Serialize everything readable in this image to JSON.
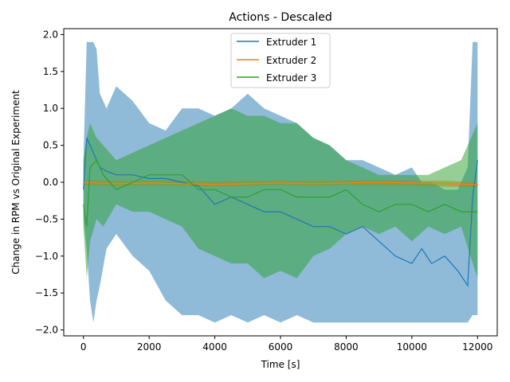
{
  "chart_data": {
    "type": "line",
    "title": "Actions - Descaled",
    "xlabel": "Time [s]",
    "ylabel": "Change in RPM vs Original Experiment",
    "xlim": [
      -600,
      12600
    ],
    "ylim": [
      -2.08,
      2.08
    ],
    "xticks": [
      0,
      2000,
      4000,
      6000,
      8000,
      10000,
      12000
    ],
    "xtick_labels": [
      "0",
      "2000",
      "4000",
      "6000",
      "8000",
      "10000",
      "12000"
    ],
    "yticks": [
      -2.0,
      -1.5,
      -1.0,
      -0.5,
      0.0,
      0.5,
      1.0,
      1.5,
      2.0
    ],
    "ytick_labels": [
      "−2.0",
      "−1.5",
      "−1.0",
      "−0.5",
      "0.0",
      "0.5",
      "1.0",
      "1.5",
      "2.0"
    ],
    "grid": false,
    "legend_position": "top-center",
    "series": [
      {
        "name": "Extruder 1",
        "color": "#1f77b4",
        "band_opacity": 0.5,
        "x": [
          0,
          100,
          200,
          300,
          400,
          500,
          700,
          1000,
          1500,
          2000,
          2500,
          3000,
          3500,
          4000,
          4500,
          5000,
          5500,
          6000,
          6500,
          7000,
          7500,
          8000,
          8500,
          9000,
          9500,
          10000,
          10300,
          10600,
          11000,
          11400,
          11700,
          11850,
          12000
        ],
        "mean": [
          -0.1,
          0.6,
          0.5,
          0.4,
          0.3,
          0.2,
          0.15,
          0.1,
          0.1,
          0.05,
          0.05,
          0.0,
          -0.05,
          -0.3,
          -0.2,
          -0.3,
          -0.4,
          -0.4,
          -0.5,
          -0.6,
          -0.6,
          -0.7,
          -0.6,
          -0.8,
          -1.0,
          -1.1,
          -0.9,
          -1.1,
          -1.0,
          -1.2,
          -1.4,
          -0.2,
          0.3
        ],
        "upper": [
          0.3,
          1.9,
          1.9,
          1.9,
          1.8,
          1.2,
          1.0,
          1.3,
          1.1,
          0.8,
          0.7,
          1.0,
          1.0,
          0.9,
          1.0,
          1.2,
          1.0,
          0.9,
          0.8,
          0.6,
          0.5,
          0.3,
          0.3,
          0.2,
          0.1,
          0.2,
          0.0,
          0.0,
          -0.1,
          -0.1,
          0.2,
          1.9,
          1.9
        ],
        "lower": [
          -0.5,
          -0.9,
          -1.6,
          -1.9,
          -1.6,
          -1.4,
          -0.9,
          -0.7,
          -1.0,
          -1.2,
          -1.6,
          -1.8,
          -1.8,
          -1.9,
          -1.8,
          -1.9,
          -1.8,
          -1.9,
          -1.8,
          -1.9,
          -1.9,
          -1.9,
          -1.9,
          -1.9,
          -1.9,
          -1.9,
          -1.9,
          -1.9,
          -1.9,
          -1.9,
          -1.9,
          -1.8,
          -1.8
        ]
      },
      {
        "name": "Extruder 2",
        "color": "#ff7f0e",
        "band_opacity": 0.5,
        "x": [
          0,
          1000,
          2000,
          3000,
          4000,
          5000,
          6000,
          7000,
          8000,
          9000,
          10000,
          11000,
          12000
        ],
        "mean": [
          0.0,
          -0.02,
          -0.01,
          -0.02,
          -0.03,
          -0.02,
          -0.01,
          -0.02,
          -0.01,
          0.0,
          -0.01,
          -0.02,
          -0.03
        ],
        "upper": [
          0.03,
          0.02,
          0.02,
          0.02,
          0.01,
          0.02,
          0.02,
          0.02,
          0.02,
          0.03,
          0.02,
          0.02,
          0.0
        ],
        "lower": [
          -0.04,
          -0.05,
          -0.04,
          -0.05,
          -0.06,
          -0.05,
          -0.04,
          -0.05,
          -0.04,
          -0.04,
          -0.05,
          -0.06,
          -0.07
        ]
      },
      {
        "name": "Extruder 3",
        "color": "#2ca02c",
        "band_opacity": 0.5,
        "x": [
          0,
          100,
          200,
          400,
          600,
          1000,
          1500,
          2000,
          2500,
          3000,
          3500,
          4000,
          4500,
          5000,
          5500,
          6000,
          6500,
          7000,
          7500,
          8000,
          8500,
          9000,
          9500,
          10000,
          10500,
          11000,
          11500,
          12000
        ],
        "mean": [
          -0.3,
          -0.6,
          0.2,
          0.3,
          0.1,
          -0.1,
          0.0,
          0.1,
          0.1,
          0.1,
          -0.1,
          -0.1,
          -0.2,
          -0.2,
          -0.1,
          -0.1,
          -0.2,
          -0.2,
          -0.2,
          -0.1,
          -0.3,
          -0.4,
          -0.3,
          -0.3,
          -0.4,
          -0.3,
          -0.4,
          -0.4
        ],
        "upper": [
          0.3,
          0.6,
          0.8,
          0.6,
          0.5,
          0.3,
          0.4,
          0.5,
          0.6,
          0.7,
          0.8,
          0.9,
          1.0,
          0.9,
          0.9,
          0.8,
          0.8,
          0.6,
          0.5,
          0.3,
          0.2,
          0.1,
          0.1,
          0.1,
          0.1,
          0.2,
          0.3,
          0.8
        ],
        "lower": [
          -0.6,
          -1.3,
          -0.8,
          -0.5,
          -0.6,
          -0.3,
          -0.4,
          -0.4,
          -0.5,
          -0.6,
          -0.9,
          -1.0,
          -1.1,
          -1.1,
          -1.3,
          -1.2,
          -1.3,
          -1.0,
          -0.9,
          -0.7,
          -0.6,
          -0.7,
          -0.6,
          -0.8,
          -0.6,
          -0.7,
          -0.6,
          -1.3
        ]
      }
    ]
  }
}
